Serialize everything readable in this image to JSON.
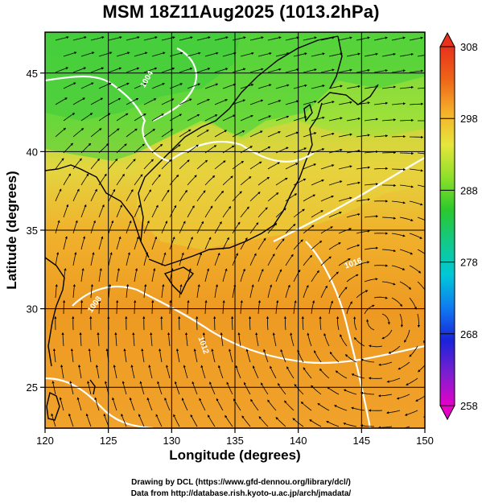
{
  "title": "MSM 18Z11Aug2025 (1013.2hPa)",
  "xlabel": "Longitude (degrees)",
  "ylabel": "Latitude  (degrees)",
  "credits": [
    "Drawing by DCL (https://www.gfd-dennou.org/library/dcl/)",
    "Data from http://database.rish.kyoto-u.ac.jp/arch/jmadata/"
  ],
  "map": {
    "projection": "equirectangular",
    "lon_range": [
      120,
      150
    ],
    "lat_range": [
      22.4,
      47.6
    ],
    "lon_ticks": [
      120,
      125,
      130,
      135,
      140,
      145,
      150
    ],
    "lat_ticks": [
      25,
      30,
      35,
      40,
      45
    ],
    "field": "temperature (K)",
    "isobar_labels": [
      "1004",
      "1008",
      "1012",
      "1016"
    ],
    "colorbar": {
      "min": 258,
      "max": 308,
      "tick_values": [
        258,
        268,
        278,
        288,
        298,
        308
      ],
      "tick_labels": [
        "258",
        "268",
        "278",
        "288",
        "298",
        "308"
      ],
      "colors": [
        "#e600c8",
        "#7a1fd0",
        "#1a23d9",
        "#0f7bf0",
        "#00c8d8",
        "#12c98a",
        "#2bc82d",
        "#8ee02a",
        "#e6e63c",
        "#f5b02a",
        "#ee6518",
        "#e8321c"
      ]
    }
  }
}
